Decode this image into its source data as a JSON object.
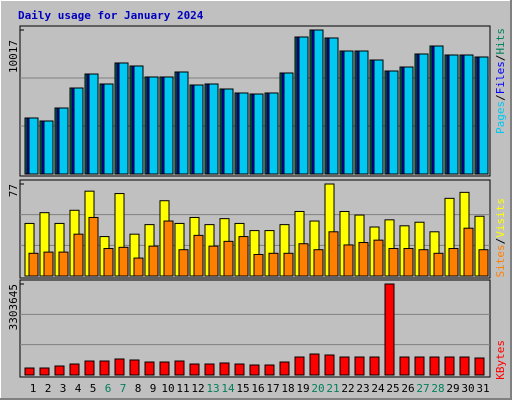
{
  "chart_data": [
    {
      "type": "bar",
      "title": "Daily usage for January 2024",
      "ylim": [
        0,
        10017
      ],
      "yticks": [
        10017
      ],
      "legend_separator": "/",
      "series": [
        {
          "name": "Hits",
          "color": "#00805c",
          "values": [
            3896,
            3687,
            4591,
            5982,
            6956,
            6261,
            7722,
            7513,
            6748,
            6748,
            7096,
            6191,
            6261,
            5913,
            5635,
            5565,
            5635,
            7026,
            9530,
            10017,
            9461,
            8556,
            8556,
            7930,
            7165,
            7443,
            8348,
            8904,
            8278,
            8278,
            8139
          ]
        },
        {
          "name": "Files",
          "color": "#0000ff",
          "values": [
            3896,
            3687,
            4591,
            5982,
            6956,
            6261,
            7722,
            7513,
            6748,
            6748,
            7096,
            6191,
            6261,
            5913,
            5635,
            5565,
            5635,
            7026,
            9530,
            10017,
            9461,
            8556,
            8556,
            7930,
            7165,
            7443,
            8348,
            8904,
            8278,
            8278,
            8139
          ]
        },
        {
          "name": "Pages",
          "color": "#00c8f0",
          "values": [
            3896,
            3687,
            4591,
            5982,
            6956,
            6261,
            7722,
            7513,
            6748,
            6748,
            7096,
            6191,
            6261,
            5913,
            5635,
            5565,
            5635,
            7026,
            9530,
            10017,
            9461,
            8556,
            8556,
            7930,
            7165,
            7443,
            8348,
            8904,
            8278,
            8278,
            8139
          ]
        }
      ]
    },
    {
      "type": "bar",
      "ylim": [
        0,
        77
      ],
      "yticks": [
        77
      ],
      "legend_separator": "/",
      "series": [
        {
          "name": "Visits",
          "color": "#ffff00",
          "values": [
            44,
            53,
            44,
            55,
            71,
            33,
            69,
            35,
            43,
            63,
            44,
            49,
            43,
            48,
            44,
            38,
            38,
            43,
            54,
            46,
            77,
            54,
            51,
            41,
            47,
            42,
            45,
            37,
            65,
            70,
            50
          ]
        },
        {
          "name": "Sites",
          "color": "#ff8000",
          "values": [
            19,
            20,
            20,
            35,
            49,
            23,
            24,
            15,
            25,
            46,
            22,
            34,
            25,
            29,
            33,
            18,
            19,
            19,
            27,
            22,
            37,
            26,
            28,
            30,
            23,
            23,
            22,
            19,
            23,
            40,
            22
          ]
        }
      ]
    },
    {
      "type": "bar",
      "ylim": [
        0,
        3303645
      ],
      "yticks": [
        3303645
      ],
      "categories": [
        "1",
        "2",
        "3",
        "4",
        "5",
        "6",
        "7",
        "8",
        "9",
        "10",
        "11",
        "12",
        "13",
        "14",
        "15",
        "16",
        "17",
        "18",
        "19",
        "20",
        "21",
        "22",
        "23",
        "24",
        "25",
        "26",
        "27",
        "28",
        "29",
        "30",
        "31"
      ],
      "category_colors": [
        "#000000",
        "#000000",
        "#000000",
        "#000000",
        "#000000",
        "#00805c",
        "#00805c",
        "#000000",
        "#000000",
        "#000000",
        "#000000",
        "#000000",
        "#00805c",
        "#00805c",
        "#000000",
        "#000000",
        "#000000",
        "#000000",
        "#000000",
        "#00805c",
        "#00805c",
        "#000000",
        "#000000",
        "#000000",
        "#000000",
        "#000000",
        "#00805c",
        "#00805c",
        "#000000",
        "#000000",
        "#000000"
      ],
      "series": [
        {
          "name": "KBytes",
          "color": "#ff0000",
          "values": [
            254000,
            254000,
            327000,
            399000,
            508000,
            508000,
            581000,
            545000,
            472000,
            472000,
            508000,
            399000,
            399000,
            436000,
            399000,
            363000,
            363000,
            472000,
            653000,
            762000,
            726000,
            653000,
            653000,
            653000,
            3303645,
            653000,
            653000,
            653000,
            653000,
            653000,
            617000
          ]
        }
      ]
    }
  ]
}
